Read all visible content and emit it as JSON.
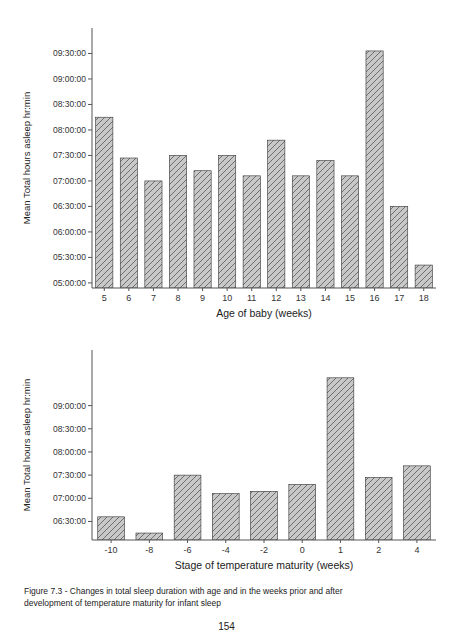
{
  "chart_data": [
    {
      "type": "bar",
      "categories": [
        5,
        6,
        7,
        8,
        9,
        10,
        11,
        12,
        13,
        14,
        15,
        16,
        17,
        18
      ],
      "values": [
        8.25,
        7.45,
        7.0,
        7.5,
        7.2,
        7.5,
        7.1,
        7.8,
        7.1,
        7.4,
        7.1,
        9.55,
        6.5,
        5.35
      ],
      "xlabel": "Age of baby (weeks)",
      "ylabel": "Mean Total hours asleep hr:min",
      "color": "#c8c8c8",
      "grid": false,
      "ylim": [
        4.9,
        10.0
      ],
      "yticks": [
        {
          "value": 5.0,
          "label": "05:00:00"
        },
        {
          "value": 5.5,
          "label": "05:30:00"
        },
        {
          "value": 6.0,
          "label": "06:00:00"
        },
        {
          "value": 6.5,
          "label": "06:30:00"
        },
        {
          "value": 7.0,
          "label": "07:00:00"
        },
        {
          "value": 7.5,
          "label": "07:30:00"
        },
        {
          "value": 8.0,
          "label": "08:00:00"
        },
        {
          "value": 8.5,
          "label": "08:30:00"
        },
        {
          "value": 9.0,
          "label": "09:00:00"
        },
        {
          "value": 9.5,
          "label": "09:30:00"
        }
      ]
    },
    {
      "type": "bar",
      "categories": [
        -10,
        -8,
        -6,
        -4,
        -2,
        0,
        1,
        2,
        4
      ],
      "values": [
        6.6,
        6.25,
        7.5,
        7.1,
        7.15,
        7.3,
        9.6,
        7.45,
        7.7
      ],
      "xlabel": "Stage of temperature maturity (weeks)",
      "ylabel": "Mean Total hours asleep hr:min",
      "color": "#c8c8c8",
      "grid": false,
      "ylim": [
        6.1,
        10.2
      ],
      "yticks": [
        {
          "value": 6.5,
          "label": "06:30:00"
        },
        {
          "value": 7.0,
          "label": "07:00:00"
        },
        {
          "value": 7.5,
          "label": "07:30:00"
        },
        {
          "value": 8.0,
          "label": "08:00:00"
        },
        {
          "value": 8.5,
          "label": "08:30:00"
        },
        {
          "value": 9.0,
          "label": "09:00:00"
        }
      ]
    }
  ],
  "caption": "Figure 7.3 - Changes in total sleep duration with age and in the weeks prior and after\ndevelopment of temperature maturity for infant sleep",
  "page_number": "154"
}
